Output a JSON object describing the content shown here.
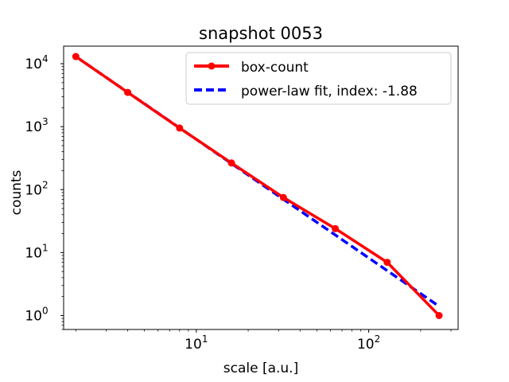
{
  "chart_data": {
    "type": "line",
    "title": "snapshot 0053",
    "xlabel": "scale [a.u.]",
    "ylabel": "counts",
    "xscale": "log",
    "yscale": "log",
    "xlim": [
      1.7,
      330
    ],
    "ylim": [
      0.6,
      19000
    ],
    "grid": false,
    "legend_placement": "top-right",
    "x_ticks": [
      {
        "value": 10,
        "base": "10",
        "exp": "1"
      },
      {
        "value": 100,
        "base": "10",
        "exp": "2"
      }
    ],
    "y_ticks": [
      {
        "value": 1,
        "base": "10",
        "exp": "0"
      },
      {
        "value": 10,
        "base": "10",
        "exp": "1"
      },
      {
        "value": 100,
        "base": "10",
        "exp": "2"
      },
      {
        "value": 1000,
        "base": "10",
        "exp": "3"
      },
      {
        "value": 10000,
        "base": "10",
        "exp": "4"
      }
    ],
    "series": [
      {
        "name": "box-count",
        "color": "#ff0000",
        "style": "solid",
        "marker": "circle",
        "x": [
          2,
          4,
          8,
          16,
          32,
          64,
          128,
          256
        ],
        "y": [
          13000,
          3500,
          950,
          265,
          75,
          24,
          7,
          1
        ]
      },
      {
        "name": "power-law fit, index: -1.88",
        "color": "#0000ff",
        "style": "dashed",
        "marker": "none",
        "x": [
          2,
          256
        ],
        "y": [
          13000,
          1.4
        ]
      }
    ]
  }
}
